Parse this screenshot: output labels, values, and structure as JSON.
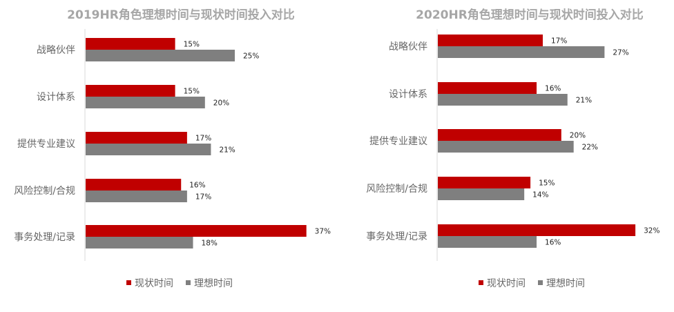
{
  "colors": {
    "current": "#c00000",
    "ideal": "#7f7f7f",
    "axis": "#d9d9d9",
    "title": "#a6a6a6",
    "label": "#666666"
  },
  "chart_data": [
    {
      "type": "bar",
      "orientation": "horizontal",
      "title": "2019HR角色理想时间与现状时间投入对比",
      "categories": [
        "战略伙伴",
        "设计体系",
        "提供专业建议",
        "风险控制/合规",
        "事务处理/记录"
      ],
      "series": [
        {
          "name": "现状时间",
          "values": [
            15,
            15,
            17,
            16,
            37
          ],
          "labels": [
            "15%",
            "15%",
            "17%",
            "16%",
            "37%"
          ],
          "color": "#c00000"
        },
        {
          "name": "理想时间",
          "values": [
            25,
            20,
            21,
            17,
            18
          ],
          "labels": [
            "25%",
            "20%",
            "21%",
            "17%",
            "18%"
          ],
          "color": "#7f7f7f"
        }
      ],
      "value_unit": "%",
      "xlim": [
        0,
        37
      ],
      "grid": false,
      "legend_position": "bottom"
    },
    {
      "type": "bar",
      "orientation": "horizontal",
      "title": "2020HR角色理想时间与现状时间投入对比",
      "categories": [
        "战略伙伴",
        "设计体系",
        "提供专业建议",
        "风险控制/合规",
        "事务处理/记录"
      ],
      "series": [
        {
          "name": "现状时间",
          "values": [
            17,
            16,
            20,
            15,
            32
          ],
          "labels": [
            "17%",
            "16%",
            "20%",
            "15%",
            "32%"
          ],
          "color": "#c00000"
        },
        {
          "name": "理想时间",
          "values": [
            27,
            21,
            22,
            14,
            16
          ],
          "labels": [
            "27%",
            "21%",
            "22%",
            "14%",
            "16%"
          ],
          "color": "#7f7f7f"
        }
      ],
      "value_unit": "%",
      "xlim": [
        0,
        32
      ],
      "grid": false,
      "legend_position": "bottom"
    }
  ]
}
